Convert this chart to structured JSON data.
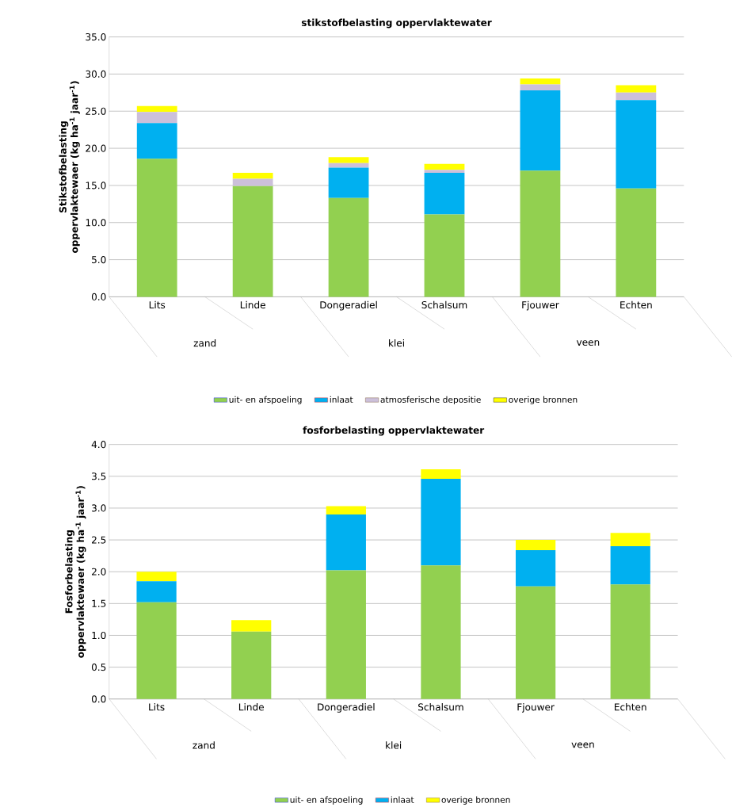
{
  "chart_data": [
    {
      "type": "bar",
      "stacked": true,
      "title": "stikstofbelasting oppervlaktewater",
      "ylabel": "Stikstofbelasting oppervlaktewaer (kg ha$^{-1}$ jaar$^{-1}$)",
      "categories": [
        "Lits",
        "Linde",
        "Dongeradiel",
        "Schalsum",
        "Fjouwer",
        "Echten"
      ],
      "series": [
        {
          "name": "uit- en afspoeling",
          "color": "#92d050",
          "values": [
            18.6,
            14.9,
            13.3,
            11.1,
            17.0,
            14.6
          ]
        },
        {
          "name": "inlaat",
          "color": "#00b0f0",
          "values": [
            4.8,
            0,
            4.1,
            5.6,
            10.8,
            11.9
          ]
        },
        {
          "name": "atmosferische depositie",
          "color": "#ccc0da",
          "values": [
            1.5,
            1.0,
            0.6,
            0.4,
            0.8,
            1.0
          ]
        },
        {
          "name": "overige bronnen",
          "color": "#ffff00",
          "values": [
            0.8,
            0.8,
            0.8,
            0.8,
            0.8,
            1.0
          ]
        }
      ],
      "ylim": [
        0,
        35
      ],
      "yticks": [
        {
          "value": 0,
          "label": "0.0"
        },
        {
          "value": 5,
          "label": "5.0"
        },
        {
          "value": 10,
          "label": "10.0"
        },
        {
          "value": 15,
          "label": "15.0"
        },
        {
          "value": 20,
          "label": "20.0"
        },
        {
          "value": 25,
          "label": "25.0"
        },
        {
          "value": 30,
          "label": "30.0"
        },
        {
          "value": 35,
          "label": "35.0"
        }
      ],
      "grid": "y",
      "legend": "bottom",
      "annotations": [
        "zand",
        "klei",
        "veen"
      ]
    },
    {
      "type": "bar",
      "stacked": true,
      "title": "fosforbelasting oppervlaktewater",
      "ylabel": "Fosforbelasting oppervlaktewaer (kg ha$^{-1}$ jaar$^{-1}$)",
      "categories": [
        "Lits",
        "Linde",
        "Dongeradiel",
        "Schalsum",
        "Fjouwer",
        "Echten"
      ],
      "series": [
        {
          "name": "uit- en afspoeling",
          "color": "#92d050",
          "values": [
            1.52,
            1.06,
            2.02,
            2.1,
            1.77,
            1.8
          ]
        },
        {
          "name": "inlaat",
          "color": "#00b0f0",
          "values": [
            0.33,
            0,
            0.88,
            1.36,
            0.57,
            0.6
          ]
        },
        {
          "name": "overige bronnen",
          "color": "#ffff00",
          "values": [
            0.15,
            0.18,
            0.13,
            0.15,
            0.16,
            0.21
          ]
        }
      ],
      "ylim": [
        0,
        4
      ],
      "yticks": [
        {
          "value": 0,
          "label": "0.0"
        },
        {
          "value": 0.5,
          "label": "0.5"
        },
        {
          "value": 1,
          "label": "1.0"
        },
        {
          "value": 1.5,
          "label": "1.5"
        },
        {
          "value": 2,
          "label": "2.0"
        },
        {
          "value": 2.5,
          "label": "2.5"
        },
        {
          "value": 3,
          "label": "3.0"
        },
        {
          "value": 3.5,
          "label": "3.5"
        },
        {
          "value": 4,
          "label": "4.0"
        }
      ],
      "grid": "y",
      "legend": "bottom",
      "annotations": [
        "zand",
        "klei",
        "veen"
      ]
    }
  ]
}
